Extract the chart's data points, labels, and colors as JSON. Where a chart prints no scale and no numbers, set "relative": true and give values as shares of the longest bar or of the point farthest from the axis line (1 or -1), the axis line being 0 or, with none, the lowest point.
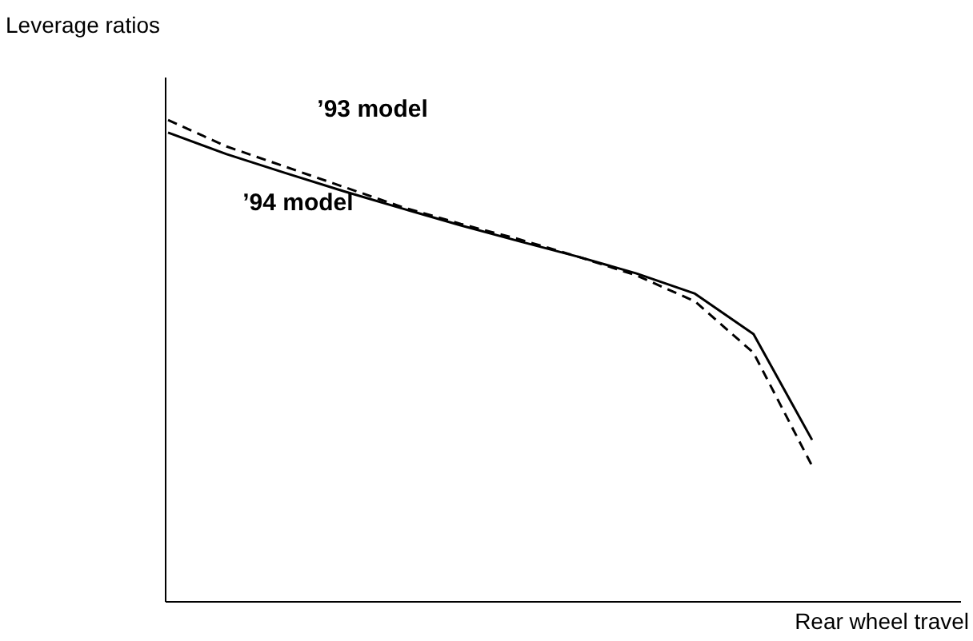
{
  "chart_data": {
    "type": "line",
    "relative": true,
    "xlabel": "Rear wheel travel",
    "ylabel": "Leverage ratios",
    "categories": [
      null,
      null,
      null,
      null,
      null,
      null,
      null,
      null,
      null,
      null,
      null,
      null
    ],
    "series": [
      {
        "name": "’93 model",
        "color": "#000000",
        "line_style": "dashed",
        "values": [
          1.0,
          0.945,
          0.903,
          0.861,
          0.819,
          0.784,
          0.752,
          0.716,
          0.677,
          0.623,
          0.516,
          0.281
        ]
      },
      {
        "name": "’94 model",
        "color": "#000000",
        "line_style": "solid",
        "values": [
          0.974,
          0.929,
          0.89,
          0.852,
          0.816,
          0.781,
          0.748,
          0.716,
          0.681,
          0.639,
          0.555,
          0.335
        ]
      }
    ],
    "grid": false,
    "marker": "none"
  }
}
